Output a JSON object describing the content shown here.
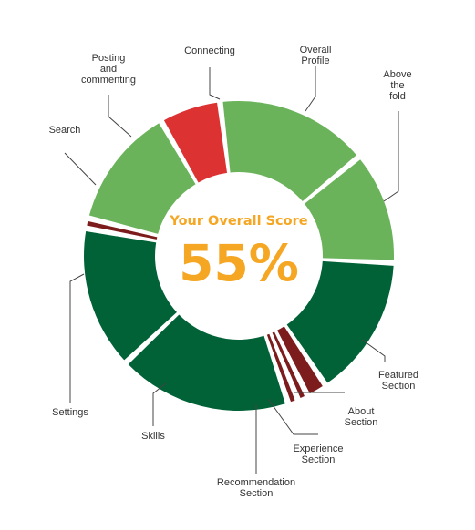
{
  "chart_data": {
    "type": "pie",
    "variant": "donut",
    "center_title": "Your Overall Score",
    "center_value": "55%",
    "center_color": "#f5a623",
    "slices": [
      {
        "label": "Overall Profile",
        "value": 15,
        "color": "#6ab35a"
      },
      {
        "label": "Above the fold",
        "value": 11,
        "color": "#6ab35a"
      },
      {
        "label": "Featured Section",
        "value": 14,
        "color": "#006236"
      },
      {
        "label": "About Section",
        "value": 2,
        "color": "#7d1c1c"
      },
      {
        "label": "Experience Section",
        "value": 1,
        "color": "#7d1c1c"
      },
      {
        "label": "Recommendation Section",
        "value": 1,
        "color": "#7d1c1c"
      },
      {
        "label": "Skills",
        "value": 17,
        "color": "#006236"
      },
      {
        "label": "Settings",
        "value": 14,
        "color": "#006236"
      },
      {
        "label": "Search",
        "value": 1,
        "color": "#7d1c1c"
      },
      {
        "label": "Posting and commenting",
        "value": 12,
        "color": "#6ab35a"
      },
      {
        "label": "Connecting",
        "value": 6,
        "color": "#dd3232"
      }
    ]
  }
}
